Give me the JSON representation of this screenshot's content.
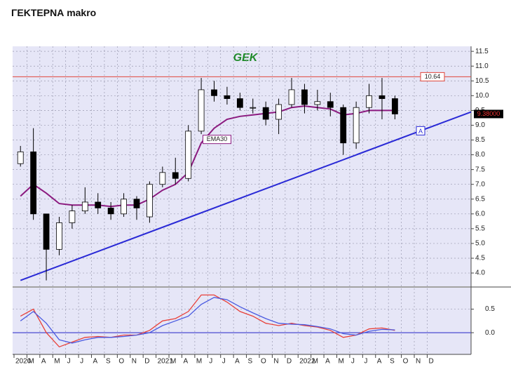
{
  "page_title": "ΓΕΚΤΕΡΝΑ makro",
  "chart_data": {
    "type": "candlestick",
    "title": "GEK",
    "categories": [
      "2020",
      "M",
      "A",
      "M",
      "J",
      "J",
      "A",
      "S",
      "O",
      "N",
      "D",
      "2021",
      "M",
      "A",
      "M",
      "J",
      "J",
      "A",
      "S",
      "O",
      "N",
      "D",
      "2022",
      "M",
      "A",
      "M",
      "J",
      "J",
      "A",
      "S",
      "O",
      "N",
      "D"
    ],
    "ohlc": {
      "open": [
        7.7,
        8.1,
        6.0,
        4.8,
        5.7,
        6.1,
        6.4,
        6.2,
        6.0,
        6.5,
        5.9,
        7.0,
        7.4,
        7.2,
        8.8,
        10.2,
        10.0,
        9.9,
        9.6,
        9.6,
        9.2,
        9.7,
        10.2,
        9.7,
        9.8,
        9.6,
        8.4,
        9.6,
        10.0,
        9.9,
        null,
        null,
        null
      ],
      "high": [
        8.3,
        8.9,
        6.0,
        5.9,
        6.3,
        6.9,
        6.7,
        6.4,
        6.7,
        6.6,
        7.1,
        7.6,
        7.9,
        9.0,
        10.6,
        10.5,
        10.3,
        10.1,
        9.9,
        9.8,
        9.9,
        10.6,
        10.4,
        10.2,
        10.1,
        9.7,
        9.8,
        10.4,
        10.6,
        10.0,
        null,
        null,
        null
      ],
      "low": [
        7.6,
        5.8,
        3.75,
        4.6,
        5.5,
        6.0,
        6.0,
        5.8,
        5.9,
        5.8,
        5.7,
        6.9,
        7.0,
        7.1,
        8.7,
        9.8,
        9.7,
        9.5,
        9.4,
        9.0,
        8.7,
        9.6,
        9.4,
        9.5,
        9.3,
        8.0,
        8.2,
        9.4,
        9.2,
        9.2,
        null,
        null,
        null
      ],
      "close": [
        8.1,
        6.0,
        4.8,
        5.7,
        6.1,
        6.4,
        6.2,
        6.0,
        6.5,
        6.2,
        7.0,
        7.4,
        7.2,
        8.8,
        10.2,
        10.0,
        9.9,
        9.6,
        9.6,
        9.2,
        9.7,
        10.2,
        9.7,
        9.8,
        9.6,
        8.4,
        9.6,
        10.0,
        9.9,
        9.38,
        null,
        null,
        null
      ]
    },
    "ema": {
      "name": "EMA30",
      "color": "#8b1a7f",
      "values": [
        6.6,
        7.0,
        6.7,
        6.35,
        6.3,
        6.3,
        6.3,
        6.25,
        6.3,
        6.3,
        6.5,
        6.8,
        7.0,
        7.4,
        8.4,
        8.9,
        9.2,
        9.3,
        9.35,
        9.4,
        9.45,
        9.6,
        9.65,
        9.6,
        9.55,
        9.35,
        9.4,
        9.5,
        9.5,
        9.5,
        null,
        null,
        null
      ]
    },
    "resistance": {
      "value": 10.64,
      "label": "10.64",
      "color": "#e0453a"
    },
    "last": {
      "value": 9.38,
      "label": "9.38000"
    },
    "trendline": {
      "label": "A",
      "start": 3.75,
      "end": 9.45,
      "color": "#2a2ad6"
    },
    "ylim": [
      3.55,
      11.67
    ],
    "yticks": [
      11.5,
      {
        "value": 11,
        "label": "11.0"
      },
      10.5,
      {
        "value": 10,
        "label": "10.0"
      },
      9.5,
      {
        "value": 9,
        "label": "9.0"
      },
      8.5,
      {
        "value": 8,
        "label": "8.0"
      },
      7.5,
      {
        "value": 7,
        "label": "7.0"
      },
      6.5,
      {
        "value": 6,
        "label": "6.0"
      },
      5.5,
      {
        "value": 5,
        "label": "5.0"
      },
      4.5,
      {
        "value": 4,
        "label": "4.0"
      }
    ],
    "grid": true,
    "macd": {
      "ylim": [
        -0.46,
        0.94
      ],
      "yticks": [
        {
          "value": 0.5,
          "label": "0.5"
        },
        {
          "value": 0,
          "label": "0.0"
        }
      ],
      "series": [
        {
          "color": "#e8413a",
          "values": [
            0.35,
            0.5,
            0.0,
            -0.3,
            -0.2,
            -0.1,
            -0.08,
            -0.1,
            -0.05,
            -0.05,
            0.05,
            0.25,
            0.3,
            0.45,
            0.8,
            0.8,
            0.65,
            0.45,
            0.35,
            0.2,
            0.15,
            0.2,
            0.15,
            0.12,
            0.05,
            -0.1,
            -0.05,
            0.08,
            0.1,
            0.05,
            null,
            null,
            null
          ]
        },
        {
          "color": "#4a5ae0",
          "values": [
            0.25,
            0.45,
            0.2,
            -0.15,
            -0.22,
            -0.15,
            -0.1,
            -0.1,
            -0.08,
            -0.05,
            0.0,
            0.15,
            0.25,
            0.35,
            0.6,
            0.75,
            0.7,
            0.55,
            0.42,
            0.3,
            0.2,
            0.18,
            0.17,
            0.13,
            0.08,
            -0.02,
            -0.05,
            0.03,
            0.07,
            0.06,
            null,
            null,
            null
          ]
        }
      ]
    }
  }
}
